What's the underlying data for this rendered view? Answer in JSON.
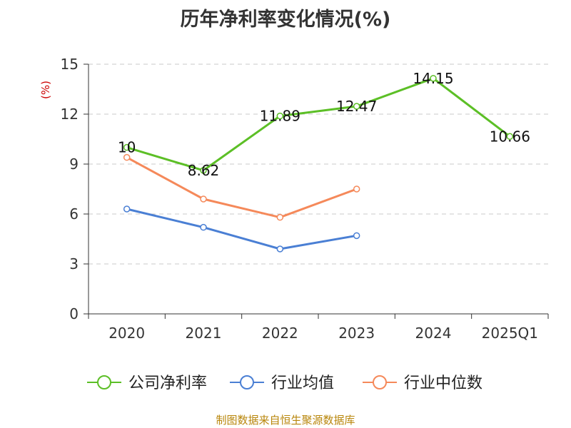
{
  "chart_data": {
    "type": "line",
    "title": "历年净利率变化情况(%)",
    "ylabel": "(%)",
    "xlabel": "",
    "categories": [
      "2020",
      "2021",
      "2022",
      "2023",
      "2024",
      "2025Q1"
    ],
    "ylim": [
      0,
      15
    ],
    "yticks": [
      "0",
      "3",
      "6",
      "9",
      "12",
      "15"
    ],
    "grid": true,
    "legend_position": "bottom",
    "series": [
      {
        "name": "公司净利率",
        "color": "#5cbf26",
        "values": [
          10,
          8.62,
          11.89,
          12.47,
          14.15,
          10.66
        ],
        "value_labels": [
          "10",
          "8.62",
          "11.89",
          "12.47",
          "14.15",
          "10.66"
        ]
      },
      {
        "name": "行业均值",
        "color": "#4a7fd4",
        "values": [
          6.3,
          5.2,
          3.9,
          4.7,
          null,
          null
        ]
      },
      {
        "name": "行业中位数",
        "color": "#f5895a",
        "values": [
          9.4,
          6.9,
          5.8,
          7.5,
          null,
          null
        ]
      }
    ]
  },
  "footer": {
    "source": "制图数据来自恒生聚源数据库"
  },
  "colors": {
    "ylabel": "#cc0000",
    "axis": "#333333",
    "grid": "#c8c8c8",
    "source": "#b8860b"
  }
}
